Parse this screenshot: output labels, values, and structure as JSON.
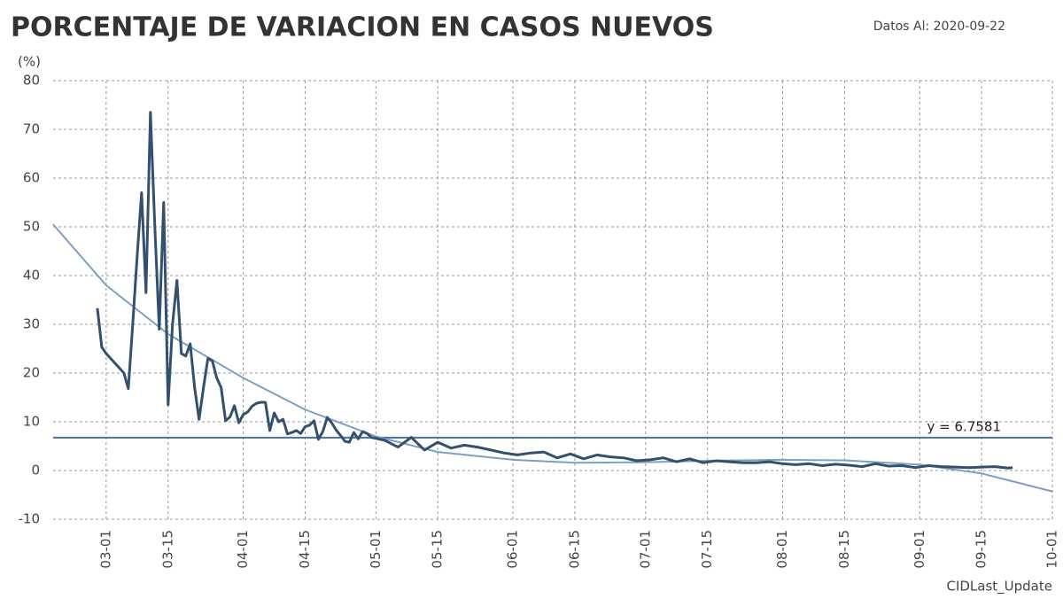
{
  "chart_data": {
    "type": "line",
    "title": "PORCENTAJE DE VARIACION EN CASOS NUEVOS",
    "subtitle": "Datos Al: 2020-09-22",
    "y_label": "(%)",
    "x_label": "CIDLast_Update",
    "xlim": [
      "02-18",
      "10-01"
    ],
    "xticks": [
      "03-01",
      "03-15",
      "04-01",
      "04-15",
      "05-01",
      "05-15",
      "06-01",
      "06-15",
      "07-01",
      "07-15",
      "08-01",
      "08-15",
      "09-01",
      "09-15",
      "10-01"
    ],
    "ylim": [
      -10,
      80
    ],
    "yticks": [
      -10,
      0,
      10,
      20,
      30,
      40,
      50,
      60,
      70,
      80
    ],
    "grid": true,
    "reference_line": {
      "value": 6.7581,
      "label": "y = 6.7581",
      "color": "#4a6fa5"
    },
    "series": [
      {
        "color": "#7f9ec4",
        "x": [
          "02-18",
          "03-01",
          "03-15",
          "04-01",
          "04-15",
          "05-01",
          "05-15",
          "06-01",
          "06-15",
          "07-01",
          "07-15",
          "08-01",
          "08-15",
          "09-01",
          "09-15",
          "10-01"
        ],
        "values": [
          50.5,
          38,
          28,
          19,
          12.5,
          7,
          3.8,
          2.2,
          1.6,
          1.7,
          2.0,
          2.2,
          2.1,
          1.2,
          -0.6,
          -4.3
        ]
      },
      {
        "color": "#34506f",
        "x": [
          "02-28",
          "02-29",
          "03-01",
          "03-02",
          "03-03",
          "03-04",
          "03-05",
          "03-06",
          "03-07",
          "03-08",
          "03-09",
          "03-10",
          "03-11",
          "03-12",
          "03-13",
          "03-14",
          "03-15",
          "03-16",
          "03-17",
          "03-18",
          "03-19",
          "03-20",
          "03-21",
          "03-22",
          "03-23",
          "03-24",
          "03-25",
          "03-26",
          "03-27",
          "03-28",
          "03-29",
          "03-30",
          "03-31",
          "04-01",
          "04-02",
          "04-03",
          "04-04",
          "04-05",
          "04-06",
          "04-07",
          "04-08",
          "04-09",
          "04-10",
          "04-11",
          "04-12",
          "04-13",
          "04-14",
          "04-15",
          "04-16",
          "04-17",
          "04-18",
          "04-19",
          "04-20",
          "04-21",
          "04-22",
          "04-23",
          "04-24",
          "04-25",
          "04-26",
          "04-27",
          "04-28",
          "04-29",
          "04-30",
          "05-03",
          "05-06",
          "05-09",
          "05-12",
          "05-15",
          "05-18",
          "05-21",
          "05-24",
          "05-27",
          "05-30",
          "06-02",
          "06-05",
          "06-08",
          "06-11",
          "06-14",
          "06-17",
          "06-20",
          "06-23",
          "06-26",
          "06-29",
          "07-02",
          "07-05",
          "07-08",
          "07-11",
          "07-14",
          "07-17",
          "07-20",
          "07-23",
          "07-26",
          "07-29",
          "08-01",
          "08-04",
          "08-07",
          "08-10",
          "08-13",
          "08-16",
          "08-19",
          "08-22",
          "08-25",
          "08-28",
          "08-31",
          "09-03",
          "09-06",
          "09-09",
          "09-12",
          "09-15",
          "09-18",
          "09-21",
          "09-22"
        ],
        "values": [
          33.3,
          25.3,
          24,
          23,
          22,
          21,
          20,
          16.8,
          30,
          44,
          57,
          36.5,
          73.5,
          50,
          29,
          55,
          13.5,
          30,
          39,
          24,
          23.5,
          26,
          17,
          10.5,
          17,
          23,
          22.5,
          19,
          17,
          10.2,
          11,
          13.3,
          9.8,
          11.5,
          12,
          13.2,
          13.8,
          14,
          14,
          8.2,
          11.8,
          10,
          10.5,
          7.5,
          7.8,
          8.2,
          7.6,
          9,
          9.3,
          10.2,
          6.4,
          8,
          10.9,
          9.8,
          8.3,
          7.2,
          6,
          5.8,
          7.8,
          6.5,
          8,
          7.6,
          6.8,
          6.2,
          4.8,
          6.8,
          4.2,
          5.8,
          4.6,
          5.2,
          4.8,
          4.2,
          3.6,
          3.2,
          3.6,
          3.8,
          2.6,
          3.4,
          2.4,
          3.2,
          2.8,
          2.6,
          2.0,
          2.2,
          2.6,
          1.8,
          2.4,
          1.6,
          2.0,
          1.8,
          1.6,
          1.6,
          1.8,
          1.4,
          1.2,
          1.4,
          1.0,
          1.3,
          1.1,
          0.8,
          1.4,
          0.9,
          1.0,
          0.6,
          1.0,
          0.8,
          0.7,
          0.6,
          0.7,
          0.8,
          0.5,
          0.6
        ]
      }
    ]
  }
}
